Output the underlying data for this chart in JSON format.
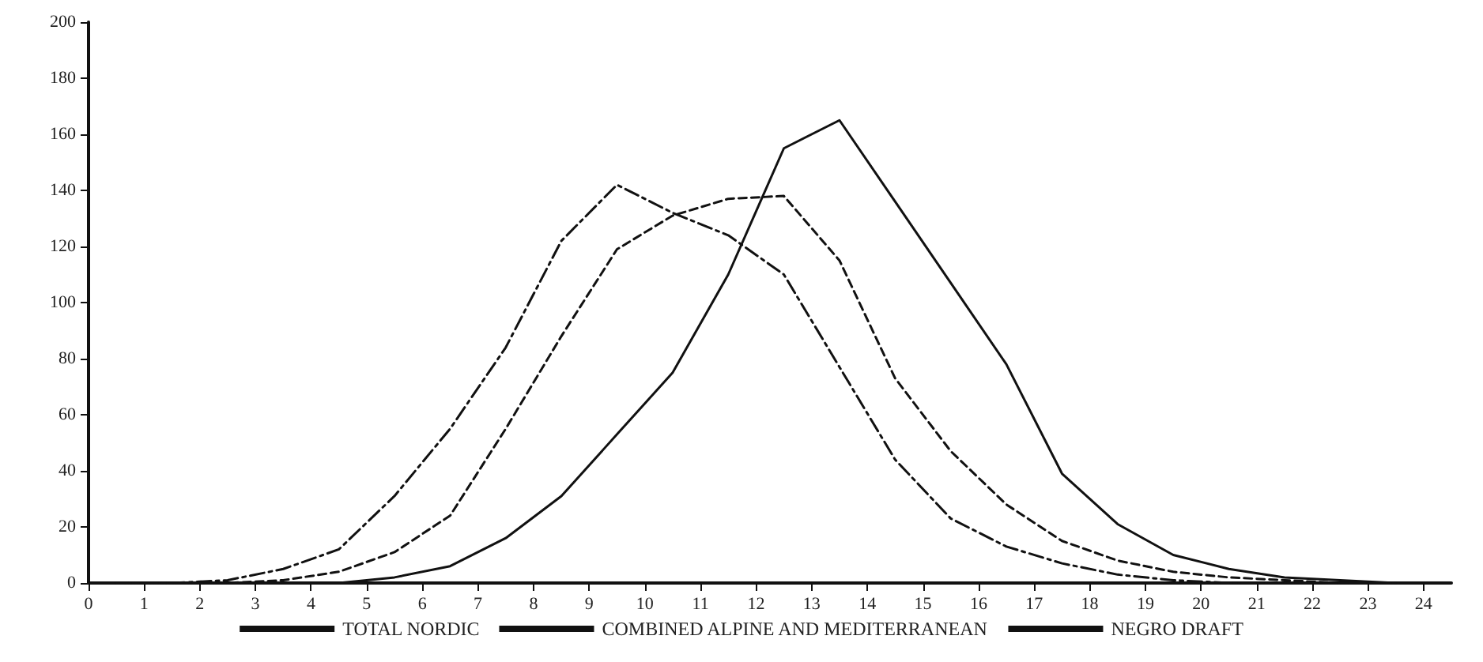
{
  "chart_data": {
    "type": "line",
    "x": [
      0.5,
      1.5,
      2.5,
      3.5,
      4.5,
      5.5,
      6.5,
      7.5,
      8.5,
      9.5,
      10.5,
      11.5,
      12.5,
      13.5,
      14.5,
      15.5,
      16.5,
      17.5,
      18.5,
      19.5,
      20.5,
      21.5,
      22.5,
      23.5
    ],
    "series": [
      {
        "name": "TOTAL NORDIC",
        "color": "#111111",
        "line_style": "solid",
        "values": [
          0,
          0,
          0,
          0,
          0,
          2,
          6,
          16,
          31,
          53,
          75,
          110,
          155,
          165,
          136,
          107,
          78,
          39,
          21,
          10,
          5,
          2,
          1,
          0
        ]
      },
      {
        "name": "COMBINED ALPINE AND MEDITERRANEAN",
        "color": "#111111",
        "line_style": "dashed",
        "values": [
          0,
          0,
          0,
          1,
          4,
          11,
          24,
          55,
          88,
          119,
          131,
          137,
          138,
          115,
          73,
          47,
          28,
          15,
          8,
          4,
          2,
          1,
          0,
          0
        ]
      },
      {
        "name": "NEGRO DRAFT",
        "color": "#111111",
        "line_style": "dashdot",
        "values": [
          0,
          0,
          1,
          5,
          12,
          31,
          55,
          84,
          122,
          142,
          132,
          124,
          110,
          77,
          44,
          23,
          13,
          7,
          3,
          1,
          0,
          0,
          0,
          0
        ]
      }
    ],
    "xlim": [
      0,
      24.5
    ],
    "xticks": [
      0,
      1,
      2,
      3,
      4,
      5,
      6,
      7,
      8,
      9,
      10,
      11,
      12,
      13,
      14,
      15,
      16,
      17,
      18,
      19,
      20,
      21,
      22,
      23,
      24
    ],
    "ylim": [
      0,
      200
    ],
    "yticks": [
      0,
      20,
      40,
      60,
      80,
      100,
      120,
      140,
      160,
      180,
      200
    ],
    "grid": false,
    "legend": "bottom",
    "marker": "none"
  }
}
